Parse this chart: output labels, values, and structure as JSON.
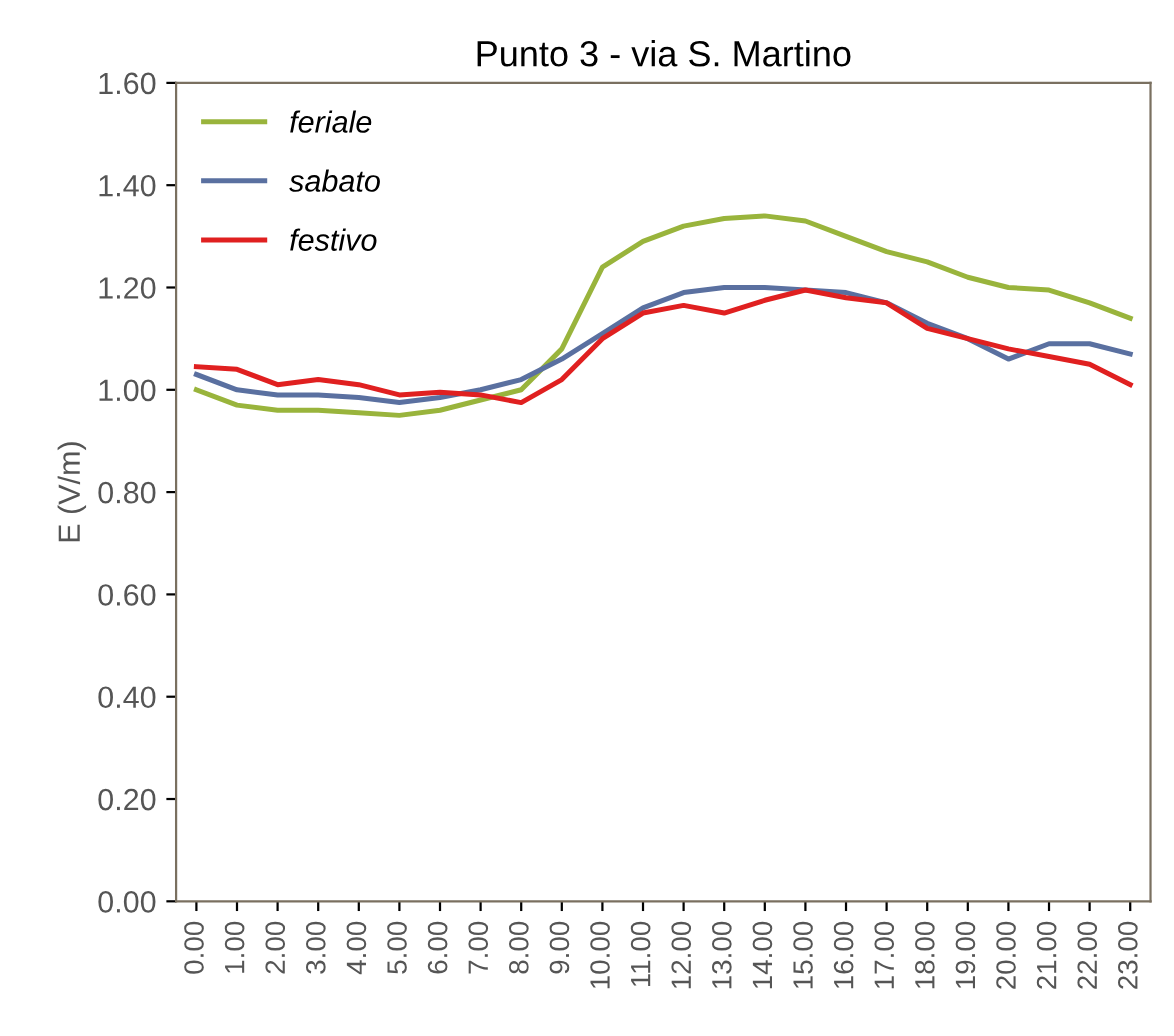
{
  "chart_data": {
    "type": "line",
    "title": "Punto 3 - via S. Martino",
    "ylabel": "E (V/m)",
    "categories": [
      "0.00",
      "1.00",
      "2.00",
      "3.00",
      "4.00",
      "5.00",
      "6.00",
      "7.00",
      "8.00",
      "9.00",
      "10.00",
      "11.00",
      "12.00",
      "13.00",
      "14.00",
      "15.00",
      "16.00",
      "17.00",
      "18.00",
      "19.00",
      "20.00",
      "21.00",
      "22.00",
      "23.00"
    ],
    "ylim": [
      0,
      1.6
    ],
    "yticks": [
      {
        "value": 0,
        "label": "0.00"
      },
      {
        "value": 0.2,
        "label": "0.20"
      },
      {
        "value": 0.4,
        "label": "0.40"
      },
      {
        "value": 0.6,
        "label": "0.60"
      },
      {
        "value": 0.8,
        "label": "0.80"
      },
      {
        "value": 1.0,
        "label": "1.00"
      },
      {
        "value": 1.2,
        "label": "1.20"
      },
      {
        "value": 1.4,
        "label": "1.40"
      },
      {
        "value": 1.6,
        "label": "1.60"
      }
    ],
    "grid": false,
    "legend": "top left",
    "marker": "none",
    "line_style": "solid",
    "series": [
      {
        "name": "feriale",
        "color": "#99b43c",
        "values": [
          1.0,
          0.97,
          0.96,
          0.96,
          0.955,
          0.95,
          0.96,
          0.98,
          1.0,
          1.08,
          1.24,
          1.29,
          1.32,
          1.335,
          1.34,
          1.33,
          1.3,
          1.27,
          1.25,
          1.22,
          1.2,
          1.195,
          1.17,
          1.14
        ]
      },
      {
        "name": "sabato",
        "color": "#5a70a0",
        "values": [
          1.03,
          1.0,
          0.99,
          0.99,
          0.985,
          0.975,
          0.985,
          1.0,
          1.02,
          1.06,
          1.11,
          1.16,
          1.19,
          1.2,
          1.2,
          1.195,
          1.19,
          1.17,
          1.13,
          1.1,
          1.06,
          1.09,
          1.09,
          1.07
        ]
      },
      {
        "name": "festivo",
        "color": "#e02020",
        "values": [
          1.045,
          1.04,
          1.01,
          1.02,
          1.01,
          0.99,
          0.995,
          0.99,
          0.975,
          1.02,
          1.1,
          1.15,
          1.165,
          1.15,
          1.175,
          1.195,
          1.18,
          1.17,
          1.12,
          1.1,
          1.08,
          1.065,
          1.05,
          1.01
        ]
      }
    ]
  }
}
